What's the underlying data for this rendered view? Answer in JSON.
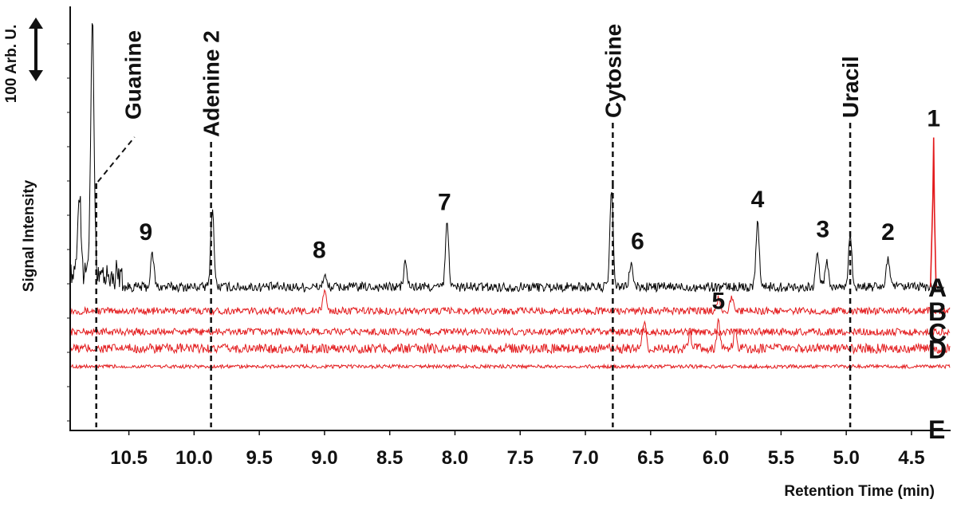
{
  "chart_data": {
    "type": "line",
    "xlabel": "Retention Time (min)",
    "ylabel": "Signal Intensity",
    "x_reversed": true,
    "xlim": [
      10.95,
      4.2
    ],
    "x_ticks": [
      "10.5",
      "10.0",
      "9.5",
      "9.0",
      "8.5",
      "8.0",
      "7.5",
      "7.0",
      "6.5",
      "6.0",
      "5.5",
      "5.0",
      "4.5"
    ],
    "scale_bar": {
      "label": "100 Arb. U.",
      "value": 100
    },
    "colors": {
      "A": "#000000",
      "B": "#e31a1c",
      "C": "#e31a1c",
      "D": "#e31a1c",
      "E": "#e31a1c",
      "peak1": "#e31a1c"
    },
    "series": [
      {
        "name": "A",
        "baseline": 0,
        "noise": 8,
        "peaks": [
          [
            10.78,
            420
          ],
          [
            10.88,
            140
          ],
          [
            10.32,
            55
          ],
          [
            9.86,
            130
          ],
          [
            9.0,
            18
          ],
          [
            8.38,
            40
          ],
          [
            8.06,
            105
          ],
          [
            6.8,
            155
          ],
          [
            6.65,
            40
          ],
          [
            5.68,
            110
          ],
          [
            5.22,
            55
          ],
          [
            5.15,
            45
          ],
          [
            4.97,
            90
          ],
          [
            4.68,
            50
          ]
        ]
      },
      {
        "name": "B",
        "baseline": -40,
        "noise": 6,
        "peaks": [
          [
            9.0,
            35
          ],
          [
            5.98,
            22
          ],
          [
            5.88,
            22
          ]
        ]
      },
      {
        "name": "C",
        "baseline": -75,
        "noise": 6,
        "peaks": []
      },
      {
        "name": "D",
        "baseline": -103,
        "noise": 8,
        "peaks": [
          [
            6.55,
            45
          ],
          [
            5.98,
            42
          ],
          [
            5.85,
            28
          ],
          [
            6.2,
            22
          ]
        ]
      },
      {
        "name": "E",
        "baseline": -133,
        "noise": 3,
        "peaks": []
      }
    ],
    "peak_labels": [
      {
        "label": "1",
        "x": 4.33,
        "y": 250
      },
      {
        "label": "2",
        "x": 4.68,
        "y": 60
      },
      {
        "label": "3",
        "x": 5.18,
        "y": 65
      },
      {
        "label": "4",
        "x": 5.68,
        "y": 115
      },
      {
        "label": "5",
        "x": 5.98,
        "y": -55
      },
      {
        "label": "6",
        "x": 6.6,
        "y": 45
      },
      {
        "label": "7",
        "x": 8.08,
        "y": 110
      },
      {
        "label": "8",
        "x": 9.04,
        "y": 30
      },
      {
        "label": "9",
        "x": 10.37,
        "y": 60
      }
    ],
    "compounds": [
      {
        "name": "Guanine",
        "rt": 10.75
      },
      {
        "name": "Adenine 2",
        "rt": 9.87
      },
      {
        "name": "Cytosine",
        "rt": 6.79
      },
      {
        "name": "Uracil",
        "rt": 4.97
      }
    ],
    "peak1": {
      "x": 4.33,
      "height": 250
    }
  }
}
